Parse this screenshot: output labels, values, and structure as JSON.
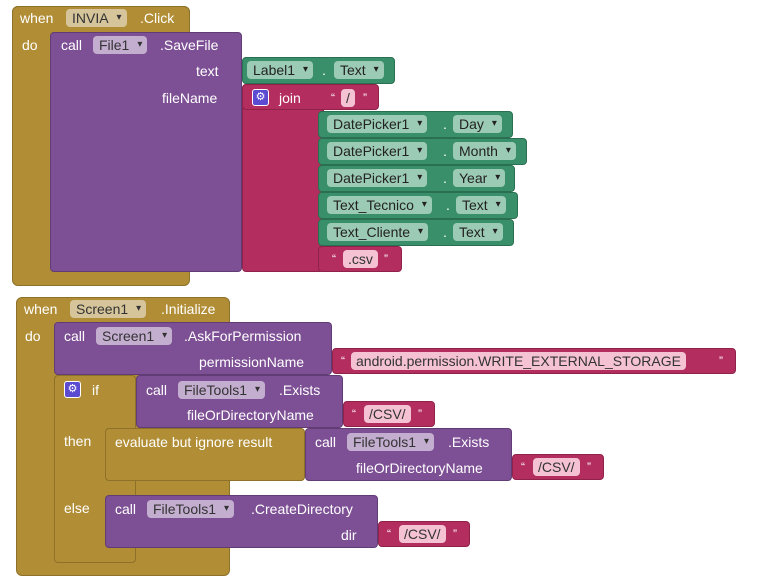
{
  "event1": {
    "when": "when",
    "component": "INVIA",
    "event": ".Click",
    "do": "do",
    "call": "call",
    "target": "File1",
    "method": ".SaveFile",
    "param_text": "text",
    "param_filename": "fileName",
    "text_getter": {
      "component": "Label1",
      "dot": ".",
      "prop": "Text"
    },
    "join": "join",
    "join_items": [
      {
        "type": "string",
        "value": "/"
      },
      {
        "type": "getter",
        "component": "DatePicker1",
        "prop": "Day"
      },
      {
        "type": "getter",
        "component": "DatePicker1",
        "prop": "Month"
      },
      {
        "type": "getter",
        "component": "DatePicker1",
        "prop": "Year"
      },
      {
        "type": "getter",
        "component": "Text_Tecnico",
        "prop": "Text"
      },
      {
        "type": "getter",
        "component": "Text_Cliente",
        "prop": "Text"
      },
      {
        "type": "string",
        "value": ".csv"
      }
    ],
    "dot": "."
  },
  "event2": {
    "when": "when",
    "component": "Screen1",
    "event": ".Initialize",
    "do": "do",
    "call": "call",
    "perm_target": "Screen1",
    "perm_method": ".AskForPermission",
    "param_permission": "permissionName",
    "permission_value": "android.permission.WRITE_EXTERNAL_STORAGE",
    "if": "if",
    "then": "then",
    "else": "else",
    "exists_target": "FileTools1",
    "exists_method": ".Exists",
    "param_path": "fileOrDirectoryName",
    "path_value": "/CSV/",
    "evaluate": "evaluate but ignore result",
    "create_target": "FileTools1",
    "create_method": ".CreateDirectory",
    "param_dir": "dir"
  },
  "quotes": {
    "open": "“",
    "close": "”"
  },
  "colors": {
    "event": "#b18e35",
    "procedure": "#7d4f94",
    "text": "#b32d5e",
    "component_getter": "#3a8f6b",
    "mutator": "#5b4bd1"
  },
  "icons": {
    "mutator": "gear-icon",
    "dropdown": "chevron-down-icon"
  }
}
